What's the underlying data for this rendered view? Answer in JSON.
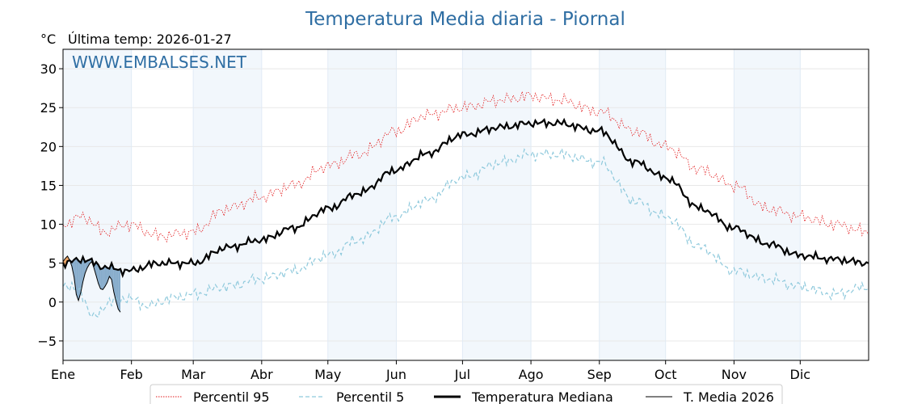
{
  "chart_data": {
    "type": "line",
    "title": "Temperatura Media diaria - Piornal",
    "unit_label": "°C",
    "last_update": "Última temp: 2026-01-27",
    "watermark": "WWW.EMBALSES.NET",
    "ylim": [
      -7.5,
      32.5
    ],
    "y_ticks": [
      -5,
      0,
      5,
      10,
      15,
      20,
      25,
      30
    ],
    "y_tick_labels": [
      "−5",
      "0",
      "5",
      "10",
      "15",
      "20",
      "25",
      "30"
    ],
    "months": [
      "Ene",
      "Feb",
      "Mar",
      "Abr",
      "May",
      "Jun",
      "Jul",
      "Ago",
      "Sep",
      "Oct",
      "Nov",
      "Dic"
    ],
    "month_start_days": [
      1,
      32,
      60,
      91,
      121,
      152,
      182,
      213,
      244,
      274,
      305,
      335
    ],
    "x_range_days": [
      1,
      366
    ],
    "grid": true,
    "legend_position": "bottom",
    "series": [
      {
        "name": "Percentil 95",
        "color": "#e31a1c",
        "style": "dotted",
        "anchors": [
          [
            1,
            10
          ],
          [
            10,
            11
          ],
          [
            20,
            9
          ],
          [
            30,
            10
          ],
          [
            45,
            8.5
          ],
          [
            60,
            9
          ],
          [
            75,
            12
          ],
          [
            91,
            13.5
          ],
          [
            105,
            15
          ],
          [
            121,
            17.5
          ],
          [
            135,
            19
          ],
          [
            152,
            22
          ],
          [
            165,
            24
          ],
          [
            182,
            25
          ],
          [
            200,
            26
          ],
          [
            213,
            26.5
          ],
          [
            225,
            26
          ],
          [
            244,
            24.5
          ],
          [
            260,
            22
          ],
          [
            274,
            20
          ],
          [
            290,
            17
          ],
          [
            305,
            15
          ],
          [
            320,
            12
          ],
          [
            335,
            11
          ],
          [
            350,
            10
          ],
          [
            366,
            9
          ]
        ]
      },
      {
        "name": "Percentil 5",
        "color": "#8ec9dc",
        "style": "dashed",
        "anchors": [
          [
            1,
            2.3
          ],
          [
            8,
            1.5
          ],
          [
            15,
            -2
          ],
          [
            22,
            0
          ],
          [
            30,
            0.5
          ],
          [
            40,
            -0.5
          ],
          [
            50,
            0.5
          ],
          [
            60,
            1
          ],
          [
            75,
            2
          ],
          [
            91,
            3
          ],
          [
            105,
            4
          ],
          [
            121,
            6
          ],
          [
            135,
            8
          ],
          [
            152,
            11
          ],
          [
            165,
            13
          ],
          [
            182,
            16
          ],
          [
            200,
            18
          ],
          [
            213,
            19
          ],
          [
            225,
            19
          ],
          [
            244,
            18
          ],
          [
            260,
            13
          ],
          [
            274,
            11
          ],
          [
            290,
            7
          ],
          [
            305,
            4
          ],
          [
            320,
            3
          ],
          [
            335,
            2
          ],
          [
            350,
            1
          ],
          [
            366,
            2
          ]
        ]
      },
      {
        "name": "Temperatura Mediana",
        "color": "#000000",
        "style": "solid-thick",
        "anchors": [
          [
            1,
            5
          ],
          [
            10,
            5.5
          ],
          [
            20,
            4.5
          ],
          [
            30,
            4
          ],
          [
            45,
            5
          ],
          [
            60,
            5
          ],
          [
            75,
            7
          ],
          [
            91,
            8
          ],
          [
            105,
            9.5
          ],
          [
            121,
            12
          ],
          [
            135,
            14
          ],
          [
            152,
            17
          ],
          [
            165,
            19
          ],
          [
            182,
            21.5
          ],
          [
            200,
            22.5
          ],
          [
            213,
            23
          ],
          [
            225,
            23
          ],
          [
            244,
            22
          ],
          [
            260,
            18
          ],
          [
            274,
            16
          ],
          [
            290,
            12
          ],
          [
            305,
            9.5
          ],
          [
            320,
            7.5
          ],
          [
            335,
            6
          ],
          [
            350,
            5.5
          ],
          [
            366,
            5
          ]
        ]
      },
      {
        "name": "T. Media 2026",
        "color": "#000000",
        "style": "solid-thin",
        "points": [
          [
            1,
            5.2
          ],
          [
            2,
            5.6
          ],
          [
            3,
            5.9
          ],
          [
            4,
            5.4
          ],
          [
            5,
            4.6
          ],
          [
            6,
            3.2
          ],
          [
            7,
            1.0
          ],
          [
            8,
            0.2
          ],
          [
            9,
            1.2
          ],
          [
            10,
            2.6
          ],
          [
            11,
            3.7
          ],
          [
            12,
            4.4
          ],
          [
            13,
            4.9
          ],
          [
            14,
            5.2
          ],
          [
            15,
            4.4
          ],
          [
            16,
            3.4
          ],
          [
            17,
            2.4
          ],
          [
            18,
            1.7
          ],
          [
            19,
            1.6
          ],
          [
            20,
            2.0
          ],
          [
            21,
            2.5
          ],
          [
            22,
            3.3
          ],
          [
            23,
            2.9
          ],
          [
            24,
            1.3
          ],
          [
            25,
            0.1
          ],
          [
            26,
            -0.9
          ],
          [
            27,
            -1.3
          ]
        ]
      }
    ],
    "shading": {
      "above_median_color": "#e67e22",
      "below_median_color": "#5b8db8"
    }
  }
}
